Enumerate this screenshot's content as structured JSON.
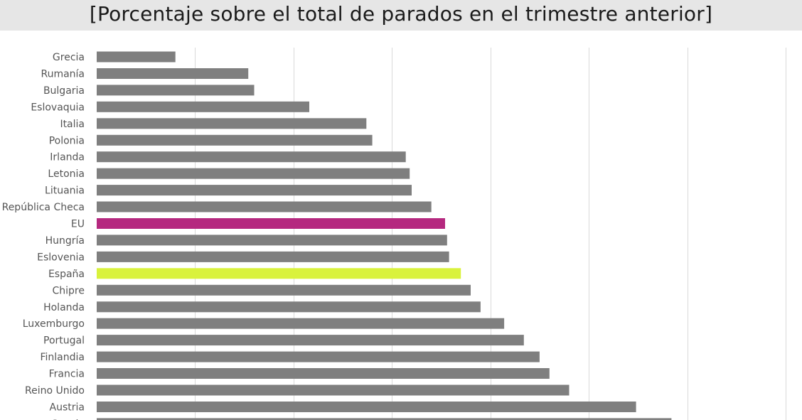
{
  "chart_data": {
    "type": "bar",
    "orientation": "horizontal",
    "title": "[Porcentaje sobre el total de parados en el trimestre anterior]",
    "categories": [
      "Grecia",
      "Rumanía",
      "Bulgaria",
      "Eslovaquia",
      "Italia",
      "Polonia",
      "Irlanda",
      "Letonia",
      "Lituania",
      "República Checa",
      "EU",
      "Hungría",
      "Eslovenia",
      "España",
      "Chipre",
      "Holanda",
      "Luxemburgo",
      "Portugal",
      "Finlandia",
      "Francia",
      "Reino Unido",
      "Austria",
      "Suecia"
    ],
    "values": [
      8,
      15.4,
      16,
      21.6,
      27.4,
      28,
      31.4,
      31.8,
      32,
      34,
      35.4,
      35.6,
      35.8,
      37,
      38,
      39,
      41.4,
      43.4,
      45,
      46,
      48,
      54.8,
      58.4
    ],
    "xlim": [
      0,
      70
    ],
    "grid": true,
    "default_color": "#7f7f7f",
    "highlight_colors": {
      "EU": "#b5287f",
      "España": "#d9f23c"
    }
  }
}
